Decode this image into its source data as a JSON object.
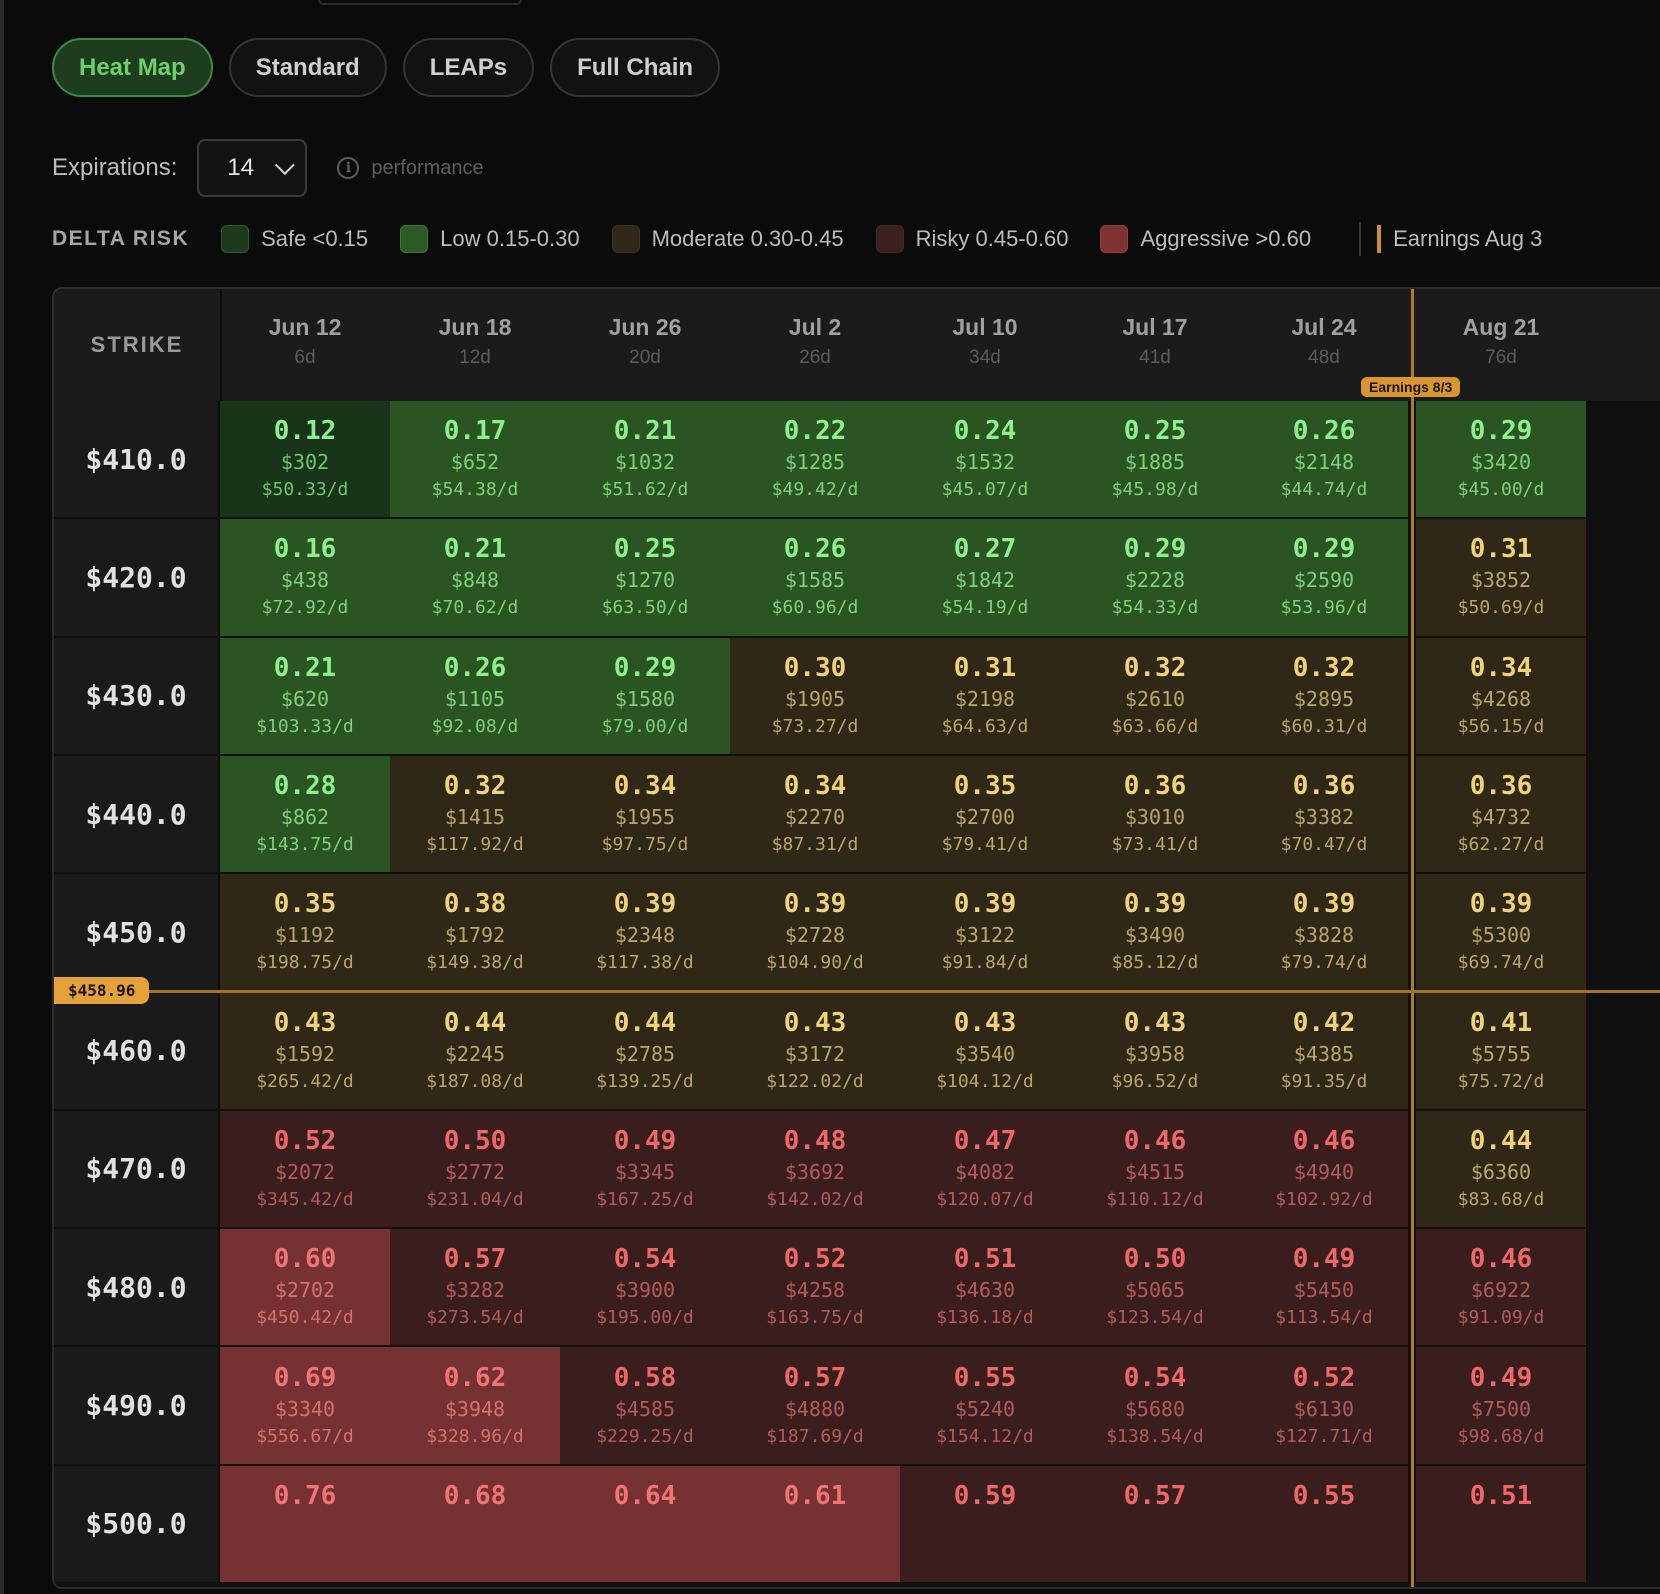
{
  "tabs": [
    {
      "label": "Heat Map",
      "active": true
    },
    {
      "label": "Standard",
      "active": false
    },
    {
      "label": "LEAPs",
      "active": false
    },
    {
      "label": "Full Chain",
      "active": false
    }
  ],
  "expirations": {
    "label": "Expirations:",
    "value": "14"
  },
  "info": {
    "icon": "i",
    "label": "performance"
  },
  "legend": {
    "title": "DELTA RISK",
    "items": [
      {
        "label": "Safe <0.15",
        "color": "#1d3a1e",
        "border": "#2c5a2d"
      },
      {
        "label": "Low 0.15-0.30",
        "color": "#2d5a24",
        "border": "#3a7a30"
      },
      {
        "label": "Moderate 0.30-0.45",
        "color": "#302817",
        "border": "#3d3320"
      },
      {
        "label": "Risky 0.45-0.60",
        "color": "#3c1f1f",
        "border": "#4b2828"
      },
      {
        "label": "Aggressive >0.60",
        "color": "#7e3232",
        "border": "#9a3c3c"
      }
    ],
    "earnings": "Earnings Aug 3"
  },
  "grid": {
    "strike_header": "STRIKE",
    "columns": [
      {
        "date": "Jun 12",
        "dte": "6d"
      },
      {
        "date": "Jun 18",
        "dte": "12d"
      },
      {
        "date": "Jun 26",
        "dte": "20d"
      },
      {
        "date": "Jul 2",
        "dte": "26d"
      },
      {
        "date": "Jul 10",
        "dte": "34d"
      },
      {
        "date": "Jul 17",
        "dte": "41d"
      },
      {
        "date": "Jul 24",
        "dte": "48d"
      },
      {
        "date": "Aug 21",
        "dte": "76d"
      }
    ],
    "earnings_badge": "Earnings 8/3",
    "current_price": "$458.96",
    "rows": [
      {
        "strike": "$410.0",
        "cells": [
          [
            "0.12",
            "$302",
            "$50.33/d",
            "safe"
          ],
          [
            "0.17",
            "$652",
            "$54.38/d",
            "low"
          ],
          [
            "0.21",
            "$1032",
            "$51.62/d",
            "low"
          ],
          [
            "0.22",
            "$1285",
            "$49.42/d",
            "low"
          ],
          [
            "0.24",
            "$1532",
            "$45.07/d",
            "low"
          ],
          [
            "0.25",
            "$1885",
            "$45.98/d",
            "low"
          ],
          [
            "0.26",
            "$2148",
            "$44.74/d",
            "low"
          ],
          [
            "0.29",
            "$3420",
            "$45.00/d",
            "low"
          ]
        ]
      },
      {
        "strike": "$420.0",
        "cells": [
          [
            "0.16",
            "$438",
            "$72.92/d",
            "low"
          ],
          [
            "0.21",
            "$848",
            "$70.62/d",
            "low"
          ],
          [
            "0.25",
            "$1270",
            "$63.50/d",
            "low"
          ],
          [
            "0.26",
            "$1585",
            "$60.96/d",
            "low"
          ],
          [
            "0.27",
            "$1842",
            "$54.19/d",
            "low"
          ],
          [
            "0.29",
            "$2228",
            "$54.33/d",
            "low"
          ],
          [
            "0.29",
            "$2590",
            "$53.96/d",
            "low"
          ],
          [
            "0.31",
            "$3852",
            "$50.69/d",
            "mod"
          ]
        ]
      },
      {
        "strike": "$430.0",
        "cells": [
          [
            "0.21",
            "$620",
            "$103.33/d",
            "low"
          ],
          [
            "0.26",
            "$1105",
            "$92.08/d",
            "low"
          ],
          [
            "0.29",
            "$1580",
            "$79.00/d",
            "low"
          ],
          [
            "0.30",
            "$1905",
            "$73.27/d",
            "mod"
          ],
          [
            "0.31",
            "$2198",
            "$64.63/d",
            "mod"
          ],
          [
            "0.32",
            "$2610",
            "$63.66/d",
            "mod"
          ],
          [
            "0.32",
            "$2895",
            "$60.31/d",
            "mod"
          ],
          [
            "0.34",
            "$4268",
            "$56.15/d",
            "mod"
          ]
        ]
      },
      {
        "strike": "$440.0",
        "cells": [
          [
            "0.28",
            "$862",
            "$143.75/d",
            "low"
          ],
          [
            "0.32",
            "$1415",
            "$117.92/d",
            "mod"
          ],
          [
            "0.34",
            "$1955",
            "$97.75/d",
            "mod"
          ],
          [
            "0.34",
            "$2270",
            "$87.31/d",
            "mod"
          ],
          [
            "0.35",
            "$2700",
            "$79.41/d",
            "mod"
          ],
          [
            "0.36",
            "$3010",
            "$73.41/d",
            "mod"
          ],
          [
            "0.36",
            "$3382",
            "$70.47/d",
            "mod"
          ],
          [
            "0.36",
            "$4732",
            "$62.27/d",
            "mod"
          ]
        ]
      },
      {
        "strike": "$450.0",
        "cells": [
          [
            "0.35",
            "$1192",
            "$198.75/d",
            "mod"
          ],
          [
            "0.38",
            "$1792",
            "$149.38/d",
            "mod"
          ],
          [
            "0.39",
            "$2348",
            "$117.38/d",
            "mod"
          ],
          [
            "0.39",
            "$2728",
            "$104.90/d",
            "mod"
          ],
          [
            "0.39",
            "$3122",
            "$91.84/d",
            "mod"
          ],
          [
            "0.39",
            "$3490",
            "$85.12/d",
            "mod"
          ],
          [
            "0.39",
            "$3828",
            "$79.74/d",
            "mod"
          ],
          [
            "0.39",
            "$5300",
            "$69.74/d",
            "mod"
          ]
        ]
      },
      {
        "strike": "$460.0",
        "cells": [
          [
            "0.43",
            "$1592",
            "$265.42/d",
            "mod"
          ],
          [
            "0.44",
            "$2245",
            "$187.08/d",
            "mod"
          ],
          [
            "0.44",
            "$2785",
            "$139.25/d",
            "mod"
          ],
          [
            "0.43",
            "$3172",
            "$122.02/d",
            "mod"
          ],
          [
            "0.43",
            "$3540",
            "$104.12/d",
            "mod"
          ],
          [
            "0.43",
            "$3958",
            "$96.52/d",
            "mod"
          ],
          [
            "0.42",
            "$4385",
            "$91.35/d",
            "mod"
          ],
          [
            "0.41",
            "$5755",
            "$75.72/d",
            "mod"
          ]
        ]
      },
      {
        "strike": "$470.0",
        "cells": [
          [
            "0.52",
            "$2072",
            "$345.42/d",
            "risky"
          ],
          [
            "0.50",
            "$2772",
            "$231.04/d",
            "risky"
          ],
          [
            "0.49",
            "$3345",
            "$167.25/d",
            "risky"
          ],
          [
            "0.48",
            "$3692",
            "$142.02/d",
            "risky"
          ],
          [
            "0.47",
            "$4082",
            "$120.07/d",
            "risky"
          ],
          [
            "0.46",
            "$4515",
            "$110.12/d",
            "risky"
          ],
          [
            "0.46",
            "$4940",
            "$102.92/d",
            "risky"
          ],
          [
            "0.44",
            "$6360",
            "$83.68/d",
            "mod"
          ]
        ]
      },
      {
        "strike": "$480.0",
        "cells": [
          [
            "0.60",
            "$2702",
            "$450.42/d",
            "agg"
          ],
          [
            "0.57",
            "$3282",
            "$273.54/d",
            "risky"
          ],
          [
            "0.54",
            "$3900",
            "$195.00/d",
            "risky"
          ],
          [
            "0.52",
            "$4258",
            "$163.75/d",
            "risky"
          ],
          [
            "0.51",
            "$4630",
            "$136.18/d",
            "risky"
          ],
          [
            "0.50",
            "$5065",
            "$123.54/d",
            "risky"
          ],
          [
            "0.49",
            "$5450",
            "$113.54/d",
            "risky"
          ],
          [
            "0.46",
            "$6922",
            "$91.09/d",
            "risky"
          ]
        ]
      },
      {
        "strike": "$490.0",
        "cells": [
          [
            "0.69",
            "$3340",
            "$556.67/d",
            "agg"
          ],
          [
            "0.62",
            "$3948",
            "$328.96/d",
            "agg"
          ],
          [
            "0.58",
            "$4585",
            "$229.25/d",
            "risky"
          ],
          [
            "0.57",
            "$4880",
            "$187.69/d",
            "risky"
          ],
          [
            "0.55",
            "$5240",
            "$154.12/d",
            "risky"
          ],
          [
            "0.54",
            "$5680",
            "$138.54/d",
            "risky"
          ],
          [
            "0.52",
            "$6130",
            "$127.71/d",
            "risky"
          ],
          [
            "0.49",
            "$7500",
            "$98.68/d",
            "risky"
          ]
        ]
      },
      {
        "strike": "$500.0",
        "cells": [
          [
            "0.76",
            "",
            "",
            "agg"
          ],
          [
            "0.68",
            "",
            "",
            "agg"
          ],
          [
            "0.64",
            "",
            "",
            "agg"
          ],
          [
            "0.61",
            "",
            "",
            "agg"
          ],
          [
            "0.59",
            "",
            "",
            "risky"
          ],
          [
            "0.57",
            "",
            "",
            "risky"
          ],
          [
            "0.55",
            "",
            "",
            "risky"
          ],
          [
            "0.51",
            "",
            "",
            "risky"
          ]
        ]
      }
    ]
  },
  "colors": {
    "safe": {
      "bg": "#183419",
      "delta": "#8ef08c",
      "text": "#6cc96a"
    },
    "low": {
      "bg": "#2a5522",
      "delta": "#8ef08c",
      "text": "#7fd07c"
    },
    "mod": {
      "bg": "#302816",
      "delta": "#f1d27a",
      "text": "#bba66a"
    },
    "risky": {
      "bg": "#3a1e1e",
      "delta": "#ef6767",
      "text": "#b55a5a"
    },
    "agg": {
      "bg": "#763232",
      "delta": "#f07474",
      "text": "#d67070"
    }
  }
}
